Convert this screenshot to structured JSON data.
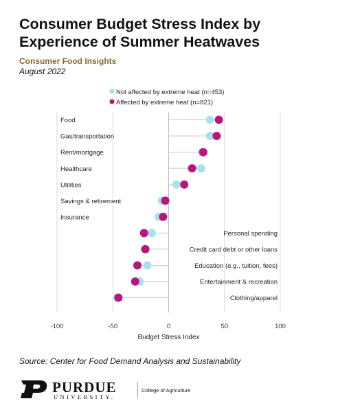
{
  "header": {
    "title": "Consumer Budget Stress Index by Experience of Summer Heatwaves",
    "subtitle": "Consumer Food Insights",
    "date": "August 2022"
  },
  "footer": {
    "source": "Source:  Center for Food Demand Analysis and Sustainability",
    "logo_word": "PURDUE",
    "logo_sub": "UNIVERSITY.",
    "college": "College of Agriculture"
  },
  "colors": {
    "not_affected": "#a8e1e9",
    "affected": "#b5177f",
    "stem": "#c8c8c8",
    "grid": "#d9d9d9",
    "axis_zero": "#bbbbbb"
  },
  "chart_data": {
    "type": "scatter",
    "xlabel": "Budget Stress Index",
    "xlim": [
      -100,
      100
    ],
    "xticks": [
      -100,
      -50,
      0,
      50,
      100
    ],
    "grid": true,
    "legend_position": "top",
    "categories": [
      "Food",
      "Gas/transportation",
      "Rent/mortgage",
      "Healthcare",
      "Utilities",
      "Savings & retirement",
      "Insurance",
      "Personal spending",
      "Credit card debt or other loans",
      "Education (e.g., tuition, fees)",
      "Entertainment & recreation",
      "Clothing/apparel"
    ],
    "series": [
      {
        "name": "Not affected by extreme heat (n=453)",
        "values": [
          37,
          37,
          30,
          29,
          7,
          -6,
          -9,
          -15,
          -20,
          -19,
          -26,
          -46
        ]
      },
      {
        "name": "Affected by extreme heat (n=821)",
        "values": [
          45,
          43,
          31,
          21,
          14,
          -3,
          -5,
          -22,
          -21,
          -28,
          -30,
          -45
        ]
      }
    ]
  }
}
